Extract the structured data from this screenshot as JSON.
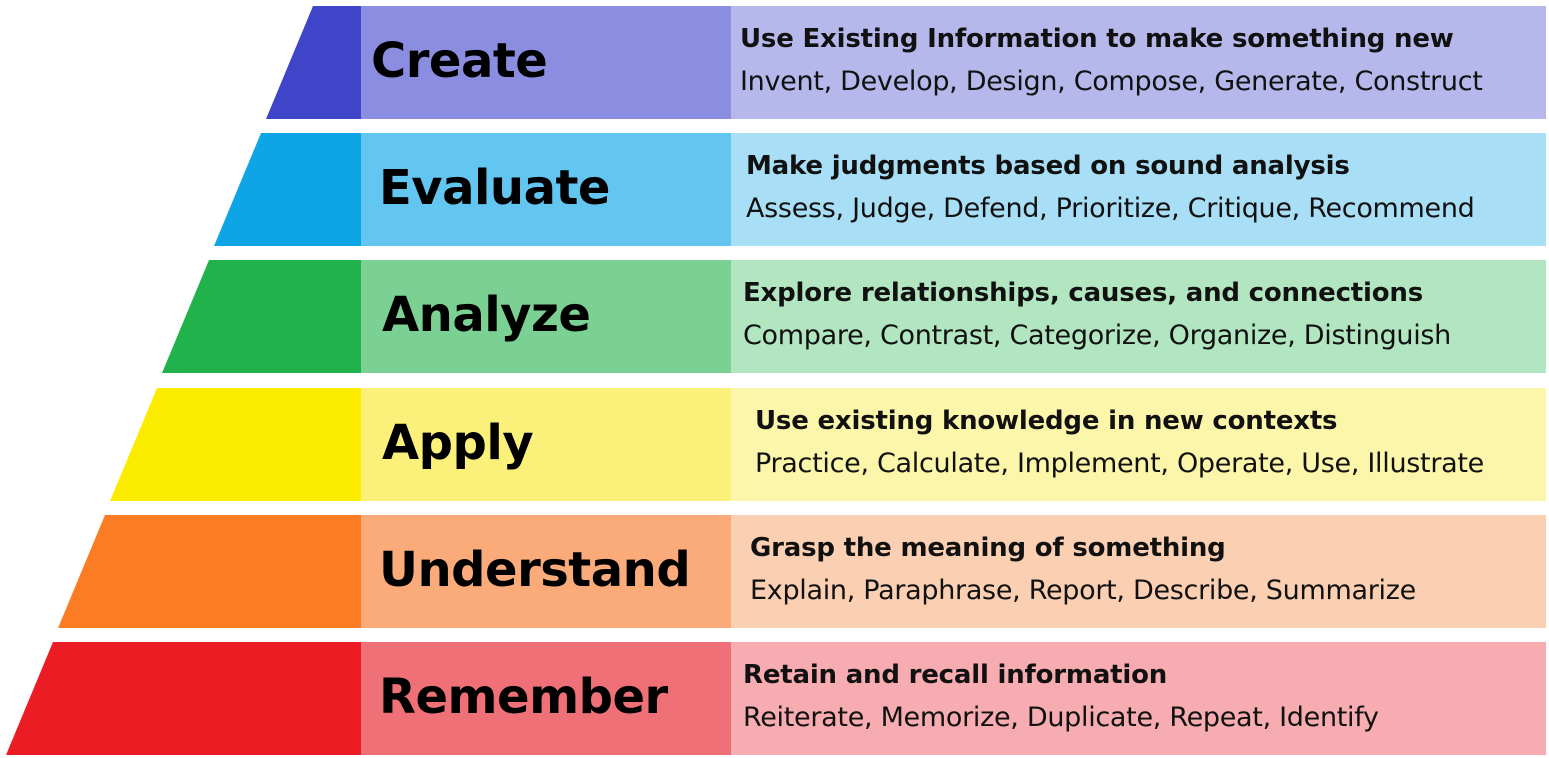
{
  "tiers": [
    {
      "name": "Create",
      "definition": "Use Existing Information to make something new",
      "verbs": "Invent, Develop, Design, Compose, Generate, Construct",
      "colors": {
        "wedge": "#3f45c9",
        "label": "#8a8de0",
        "desc": "#b6b8ec"
      }
    },
    {
      "name": "Evaluate",
      "definition": "Make judgments based on sound analysis",
      "verbs": "Assess, Judge, Defend, Prioritize, Critique, Recommend",
      "colors": {
        "wedge": "#0ea5e6",
        "label": "#62c6f1",
        "desc": "#a9dff6"
      }
    },
    {
      "name": "Analyze",
      "definition": "Explore relationships, causes, and connections",
      "verbs": "Compare, Contrast, Categorize, Organize, Distinguish",
      "colors": {
        "wedge": "#22b24c",
        "label": "#7ad193",
        "desc": "#b2e6c0"
      }
    },
    {
      "name": "Apply",
      "definition": "Use existing knowledge in new contexts",
      "verbs": "Practice, Calculate, Implement, Operate, Use, Illustrate",
      "colors": {
        "wedge": "#fbec00",
        "label": "#fbf07a",
        "desc": "#fcf6aa"
      }
    },
    {
      "name": "Understand",
      "definition": "Grasp the meaning of something",
      "verbs": "Explain, Paraphrase, Report, Describe, Summarize",
      "colors": {
        "wedge": "#fb7c22",
        "label": "#fbab7a",
        "desc": "#fbd0b2"
      }
    },
    {
      "name": "Remember",
      "definition": "Retain and recall information",
      "verbs": "Reiterate, Memorize, Duplicate, Repeat, Identify",
      "colors": {
        "wedge": "#ec1c24",
        "label": "#f07078",
        "desc": "#f6acb1"
      }
    }
  ]
}
